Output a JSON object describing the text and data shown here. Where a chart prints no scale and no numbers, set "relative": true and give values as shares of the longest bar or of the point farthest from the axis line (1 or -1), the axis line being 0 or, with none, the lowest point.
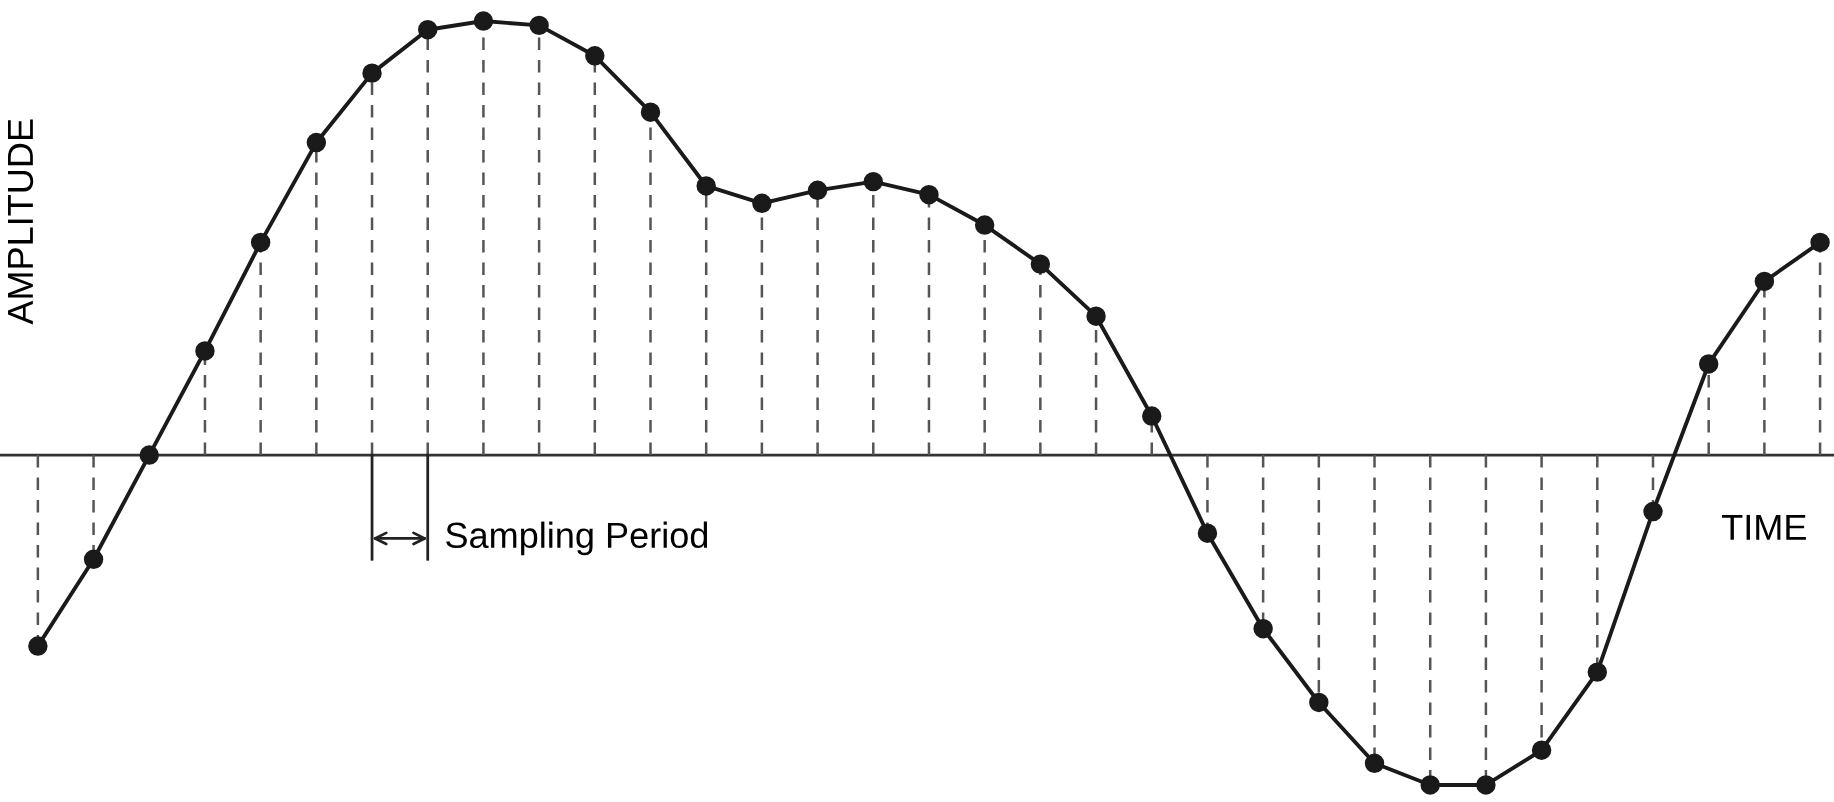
{
  "chart_data": {
    "type": "line",
    "relative": true,
    "xlabel": "TIME",
    "ylabel": "AMPLITUDE",
    "categories": [
      null,
      null,
      null,
      null,
      null,
      null,
      null,
      null,
      null,
      null,
      null,
      null,
      null,
      null,
      null,
      null,
      null,
      null,
      null,
      null,
      null,
      null,
      null,
      null,
      null,
      null,
      null,
      null,
      null,
      null,
      null,
      null,
      null
    ],
    "series": [
      {
        "color": "#1a1a1a",
        "marker": "circle",
        "line_style": "solid",
        "values": [
          -0.44,
          -0.24,
          0,
          0.24,
          0.49,
          0.72,
          0.88,
          0.98,
          1,
          0.99,
          0.92,
          0.79,
          0.62,
          0.58,
          0.61,
          0.63,
          0.6,
          0.53,
          0.44,
          0.32,
          0.09,
          -0.18,
          -0.4,
          -0.57,
          -0.71,
          -0.76,
          -0.76,
          -0.68,
          -0.5,
          -0.13,
          0.21,
          0.4,
          0.49
        ]
      }
    ],
    "annotations": [
      "Sampling Period"
    ]
  }
}
